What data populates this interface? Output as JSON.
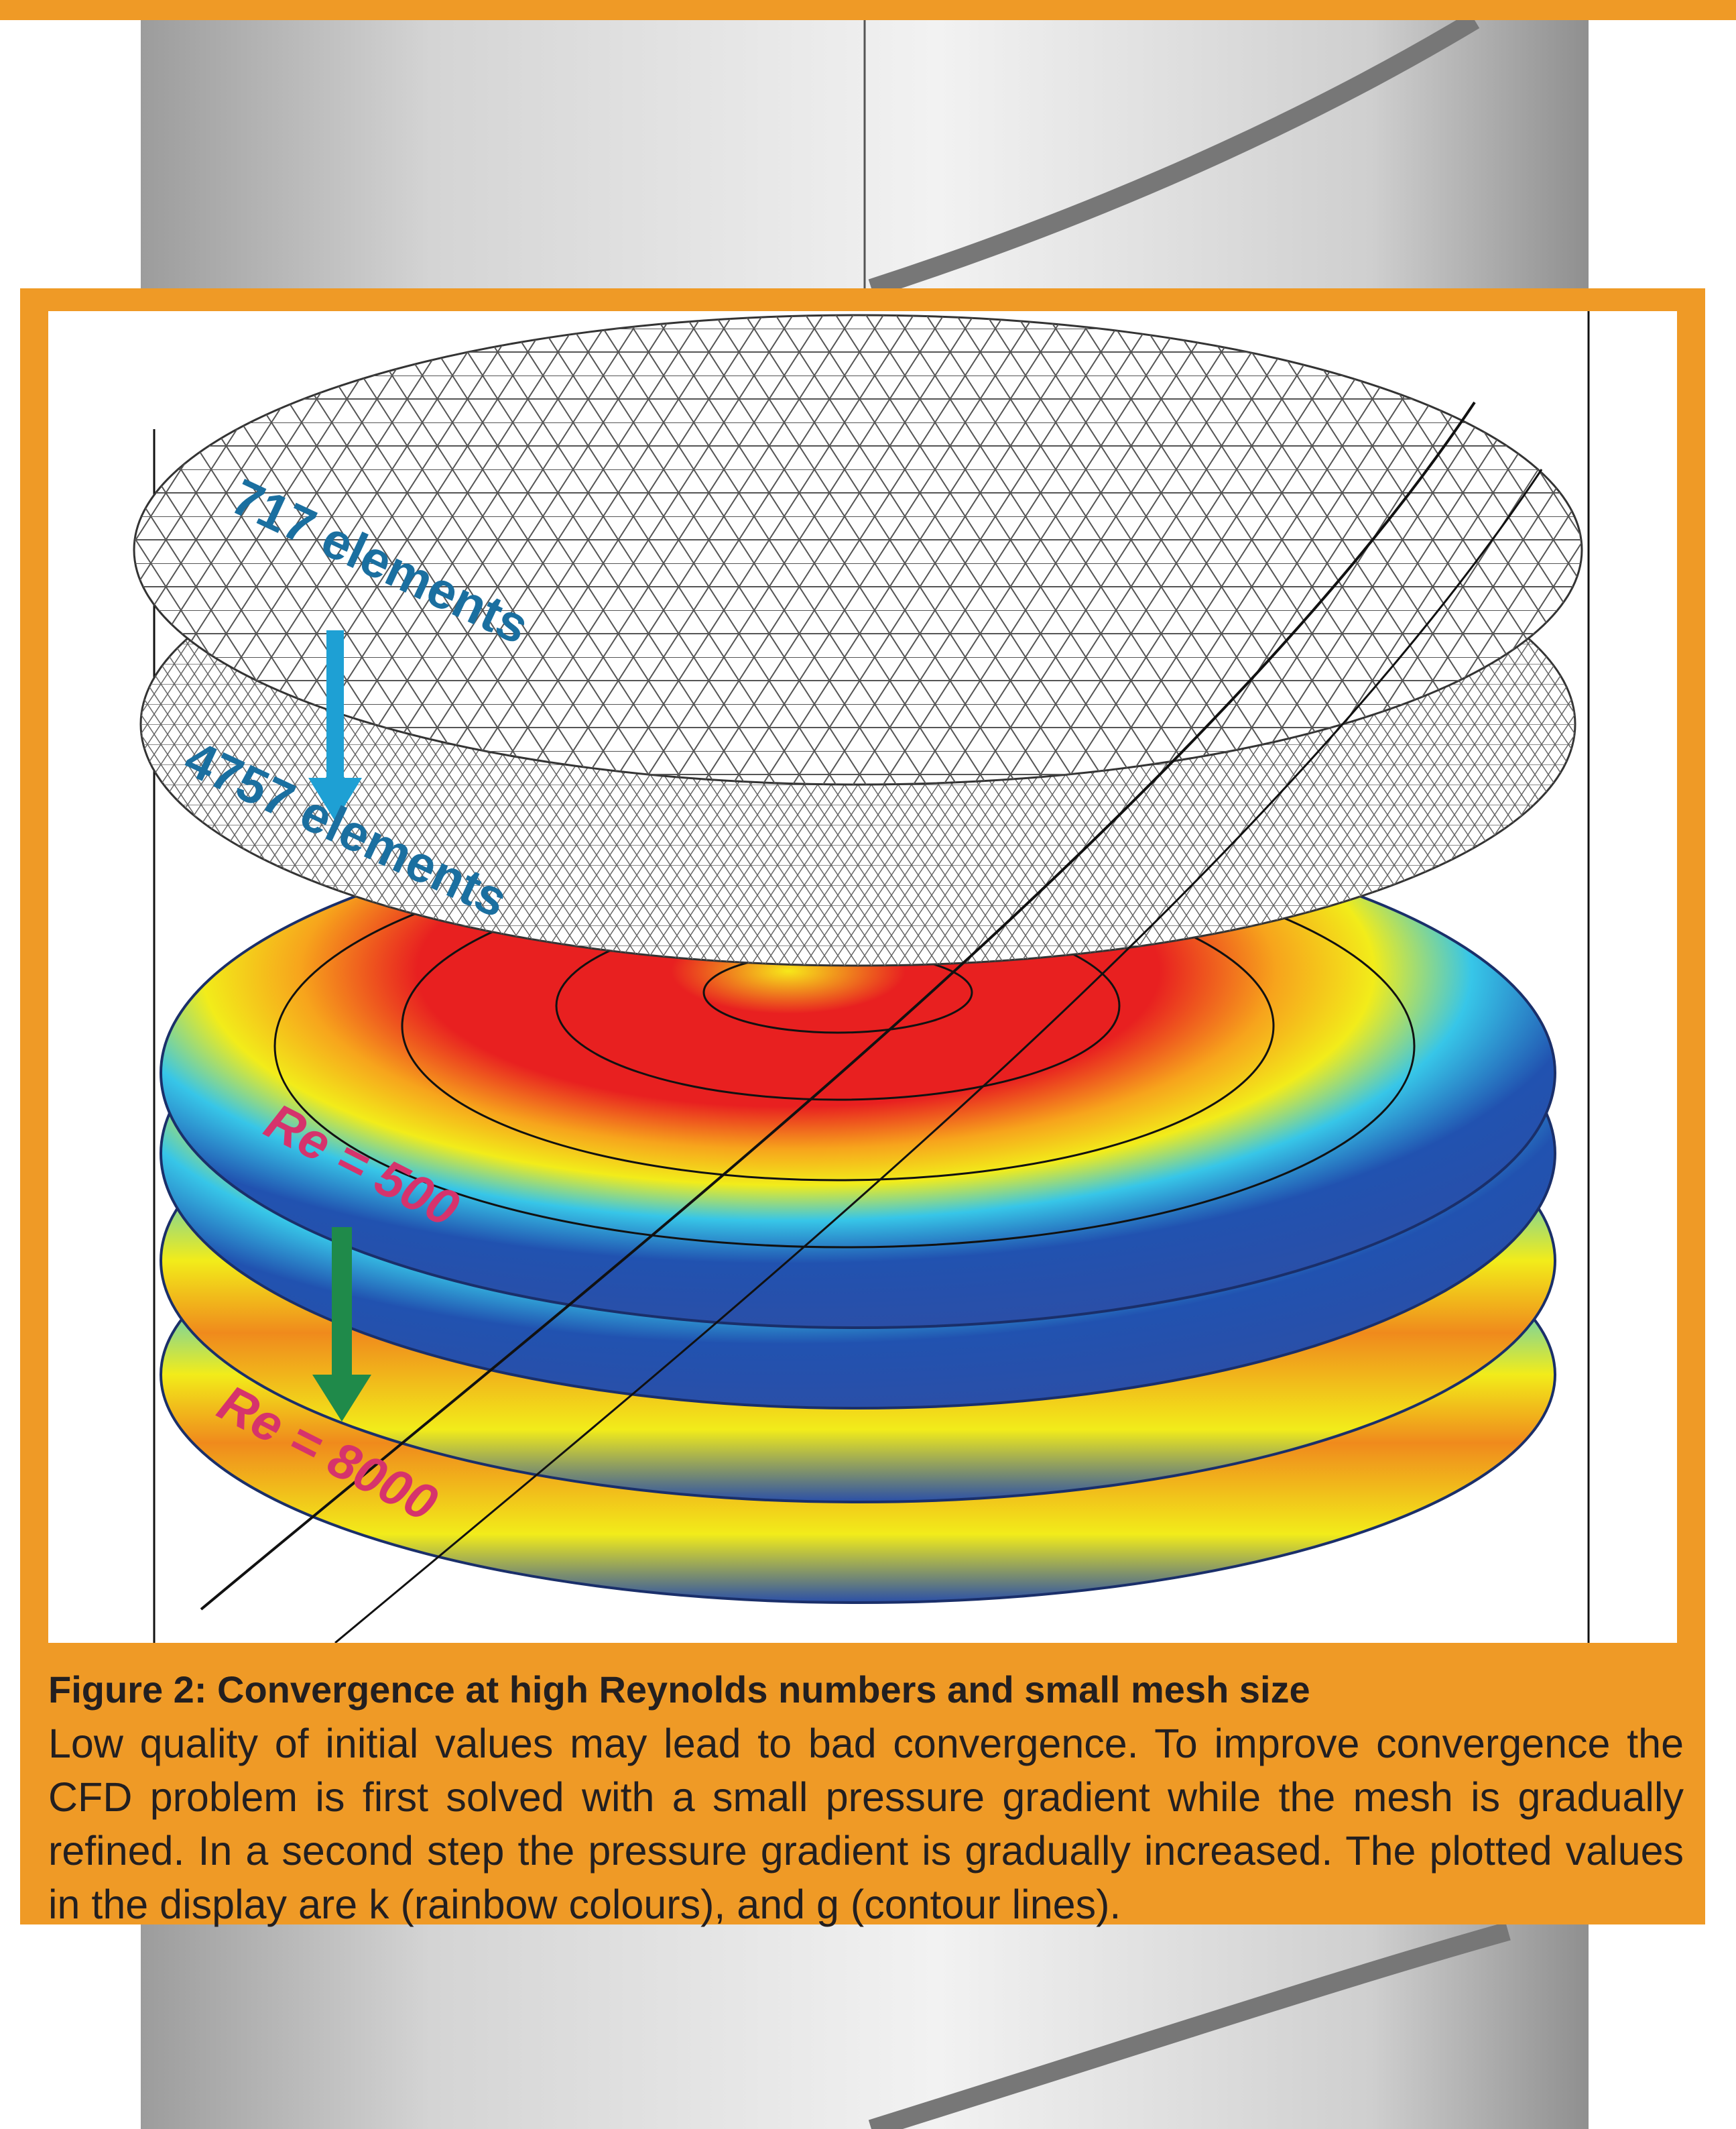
{
  "figure": {
    "labels": [
      "717 elements",
      "4757 elements",
      "Re = 500",
      "Re = 8000"
    ]
  },
  "caption": {
    "title": "Figure 2: Convergence at high Reynolds numbers and small mesh size",
    "body": "Low quality of initial values may lead to bad convergence. To improve convergence the CFD problem is first solved with a small pressure gradient while the mesh is gradually refined. In a second step the pressure gradient is gradually increased. The plotted values in the display are k (rainbow colours), and g (contour lines)."
  }
}
